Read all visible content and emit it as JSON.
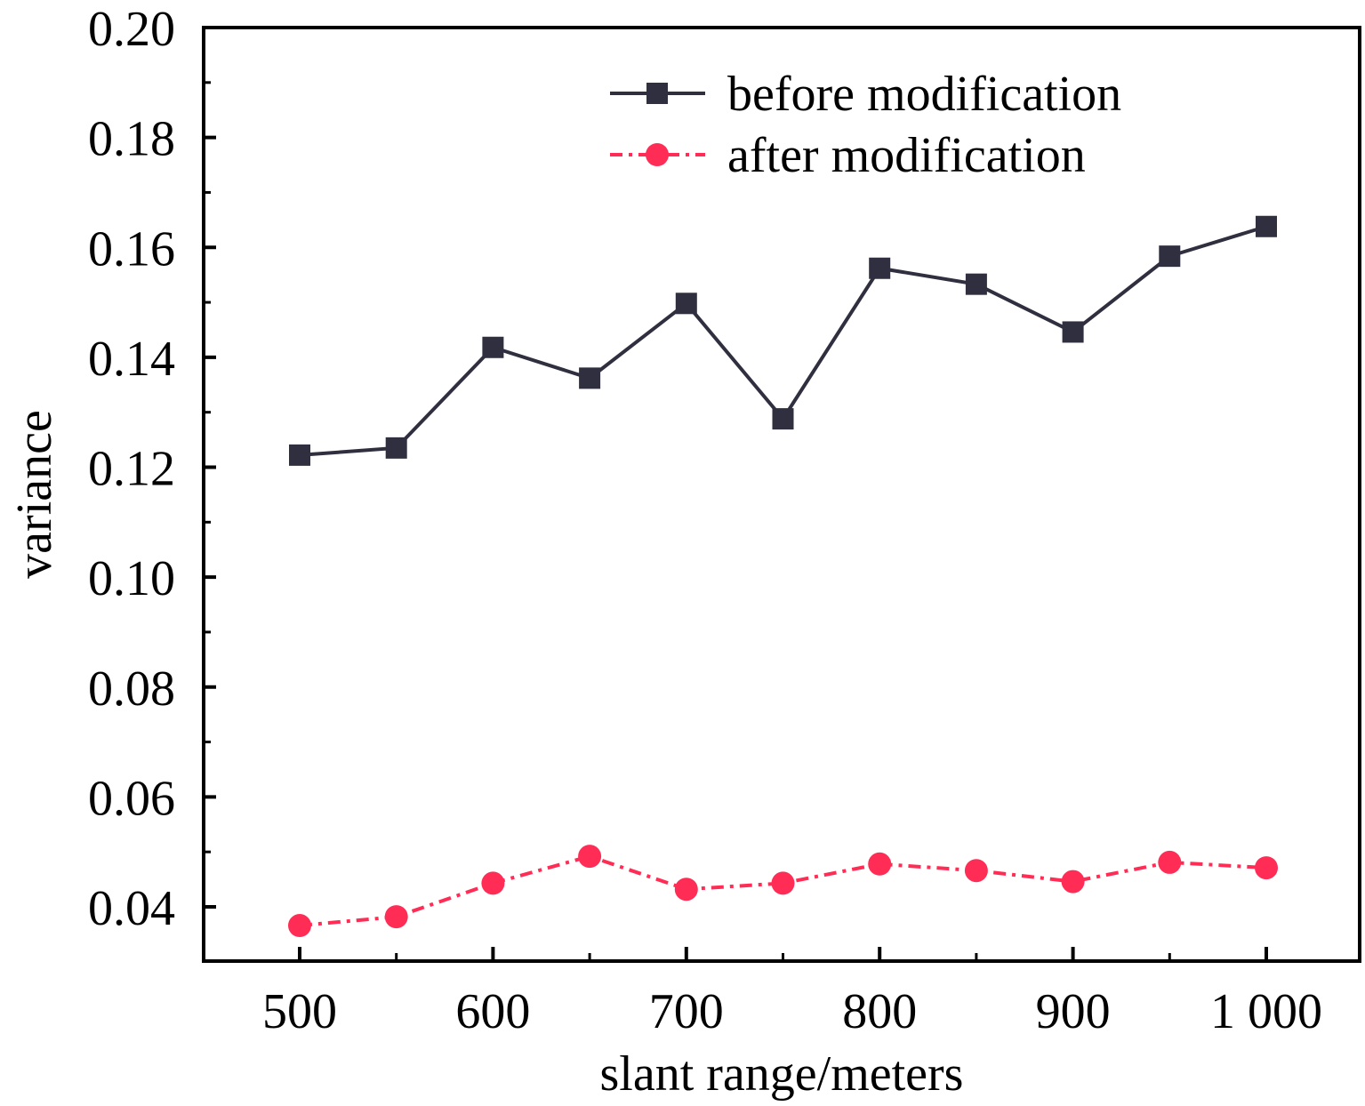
{
  "chart_data": {
    "type": "line",
    "title": "",
    "xlabel": "slant range/meters",
    "ylabel": "variance",
    "x": [
      500,
      550,
      600,
      650,
      700,
      750,
      800,
      850,
      900,
      950,
      1000
    ],
    "x_ticks": [
      500,
      600,
      700,
      800,
      900,
      1000
    ],
    "x_tick_labels": [
      "500",
      "600",
      "700",
      "800",
      "900",
      "1 000"
    ],
    "y_ticks": [
      0.04,
      0.06,
      0.08,
      0.1,
      0.12,
      0.14,
      0.16,
      0.18,
      0.2
    ],
    "y_tick_labels": [
      "0.04",
      "0.06",
      "0.08",
      "0.10",
      "0.12",
      "0.14",
      "0.16",
      "0.18",
      "0.20"
    ],
    "xlim": [
      451,
      1000.5
    ],
    "ylim": [
      0.0303,
      0.2
    ],
    "grid": false,
    "legend_position": "top-right",
    "series": [
      {
        "name": "before modification",
        "color": "#2f2f3f",
        "marker": "square",
        "line_style": "solid",
        "values": [
          0.1222,
          0.1235,
          0.1418,
          0.1362,
          0.1498,
          0.1288,
          0.1562,
          0.1533,
          0.1446,
          0.1584,
          0.1638
        ]
      },
      {
        "name": "after modification",
        "color": "#ff2d55",
        "marker": "circle",
        "line_style": "dash-dot",
        "values": [
          0.0366,
          0.0382,
          0.0443,
          0.0492,
          0.0432,
          0.0443,
          0.0478,
          0.0466,
          0.0446,
          0.0481,
          0.0471
        ]
      }
    ]
  }
}
